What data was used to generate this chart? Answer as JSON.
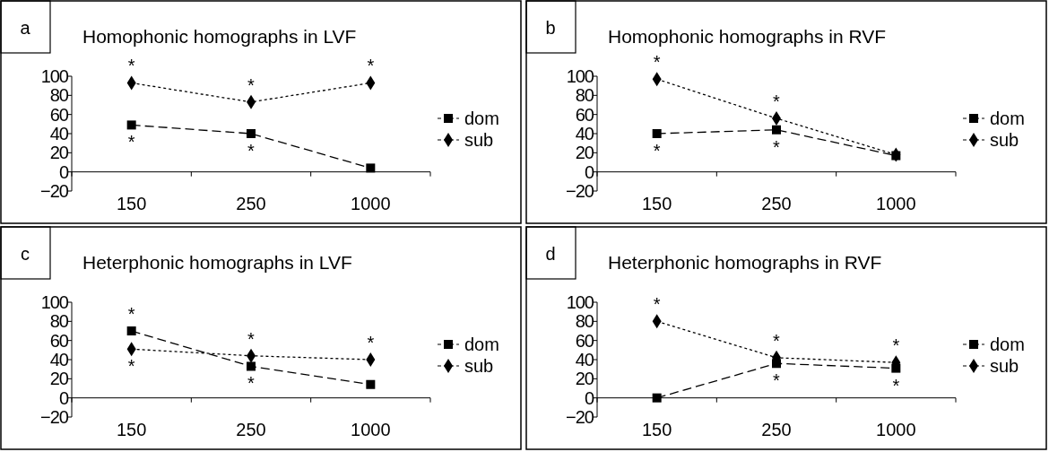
{
  "chart_data": [
    {
      "type": "line",
      "title": "Homophonic homographs in LVF",
      "categories": [
        "150",
        "250",
        "1000"
      ],
      "ylim": [
        -20,
        100
      ],
      "yticks": [
        -20,
        0,
        20,
        40,
        60,
        80,
        100
      ],
      "legend": "right",
      "annotations": [
        "a",
        {
          "text": "*",
          "x": "150",
          "y": 49
        },
        {
          "text": "*",
          "x": "250",
          "y": 40
        },
        {
          "text": "*",
          "x": "150",
          "y": 93
        },
        {
          "text": "*",
          "x": "250",
          "y": 73
        },
        {
          "text": "*",
          "x": "1000",
          "y": 93
        }
      ],
      "series": [
        {
          "name": "dom",
          "color": "#000000",
          "values": [
            49,
            40,
            4
          ],
          "marker": "square",
          "line_style": "dashed"
        },
        {
          "name": "sub",
          "color": "#000000",
          "values": [
            93,
            73,
            93
          ],
          "marker": "diamond",
          "line_style": "dotted"
        }
      ]
    },
    {
      "type": "line",
      "title": "Homophonic homographs in RVF",
      "categories": [
        "150",
        "250",
        "1000"
      ],
      "ylim": [
        -20,
        100
      ],
      "yticks": [
        -20,
        0,
        20,
        40,
        60,
        80,
        100
      ],
      "legend": "right",
      "annotations": [
        "b",
        {
          "text": "*",
          "x": "150",
          "y": 40
        },
        {
          "text": "*",
          "x": "250",
          "y": 44
        },
        {
          "text": "*",
          "x": "150",
          "y": 97
        },
        {
          "text": "*",
          "x": "250",
          "y": 56
        }
      ],
      "series": [
        {
          "name": "dom",
          "color": "#000000",
          "values": [
            40,
            44,
            17
          ],
          "marker": "square",
          "line_style": "dashed"
        },
        {
          "name": "sub",
          "color": "#000000",
          "values": [
            97,
            56,
            18
          ],
          "marker": "diamond",
          "line_style": "dotted"
        }
      ]
    },
    {
      "type": "line",
      "title": "Heterphonic homographs in LVF",
      "categories": [
        "150",
        "250",
        "1000"
      ],
      "ylim": [
        -20,
        100
      ],
      "yticks": [
        -20,
        0,
        20,
        40,
        60,
        80,
        100
      ],
      "legend": "right",
      "annotations": [
        "c",
        {
          "text": "*",
          "x": "150",
          "y": 70
        },
        {
          "text": "*",
          "x": "250",
          "y": 33
        },
        {
          "text": "*",
          "x": "150",
          "y": 51
        },
        {
          "text": "*",
          "x": "250",
          "y": 44
        },
        {
          "text": "*",
          "x": "1000",
          "y": 40
        }
      ],
      "series": [
        {
          "name": "dom",
          "color": "#000000",
          "values": [
            70,
            33,
            14
          ],
          "marker": "square",
          "line_style": "dashed"
        },
        {
          "name": "sub",
          "color": "#000000",
          "values": [
            51,
            44,
            40
          ],
          "marker": "diamond",
          "line_style": "dotted"
        }
      ]
    },
    {
      "type": "line",
      "title": "Heterphonic homographs in RVF",
      "categories": [
        "150",
        "250",
        "1000"
      ],
      "ylim": [
        -20,
        100
      ],
      "yticks": [
        -20,
        0,
        20,
        40,
        60,
        80,
        100
      ],
      "legend": "right",
      "annotations": [
        "d",
        {
          "text": "*",
          "x": "250",
          "y": 36
        },
        {
          "text": "*",
          "x": "1000",
          "y": 31
        },
        {
          "text": "*",
          "x": "150",
          "y": 80
        },
        {
          "text": "*",
          "x": "250",
          "y": 42
        },
        {
          "text": "*",
          "x": "1000",
          "y": 37
        }
      ],
      "series": [
        {
          "name": "dom",
          "color": "#000000",
          "values": [
            0,
            36,
            31
          ],
          "marker": "square",
          "line_style": "dashed"
        },
        {
          "name": "sub",
          "color": "#000000",
          "values": [
            80,
            42,
            37
          ],
          "marker": "diamond",
          "line_style": "dotted"
        }
      ]
    }
  ]
}
